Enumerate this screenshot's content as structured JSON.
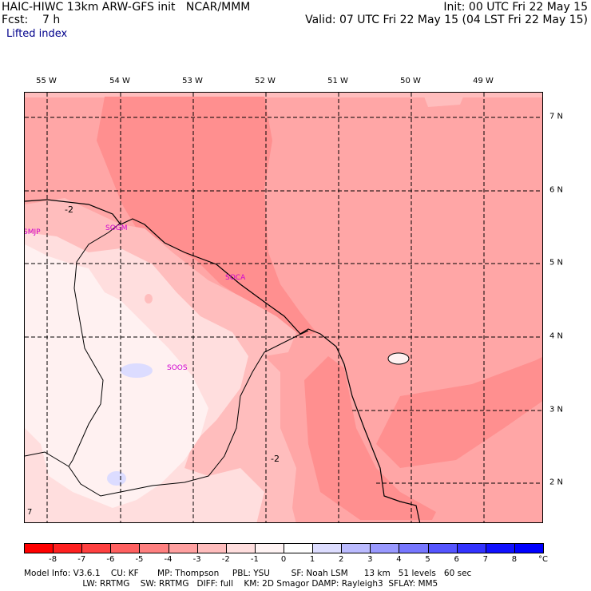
{
  "header": {
    "line1_left": "HAIC-HIWC 13km ARW-GFS init   NCAR/MMM",
    "line1_right": "Init: 00 UTC Fri 22 May 15",
    "line2_left": "Fcst:    7 h",
    "line2_right": "Valid: 07 UTC Fri 22 May 15 (04 LST Fri 22 May 15)",
    "field": "Lifted index"
  },
  "lon_labels": [
    "55 W",
    "54 W",
    "53 W",
    "52 W",
    "51 W",
    "50 W",
    "49 W"
  ],
  "lat_labels": [
    "7 N",
    "6 N",
    "5 N",
    "4 N",
    "3 N",
    "2 N"
  ],
  "stations": [
    "SMJP",
    "SOCA",
    "SOOS",
    "SOGM"
  ],
  "contour_labels": [
    "-2",
    "-2",
    "7"
  ],
  "colorbar": {
    "ticks": [
      "-8",
      "-7",
      "-6",
      "-5",
      "-4",
      "-3",
      "-2",
      "-1",
      "0",
      "1",
      "2",
      "3",
      "4",
      "5",
      "6",
      "7",
      "8"
    ],
    "unit": "°C",
    "colors": [
      "#ff0000",
      "#ff2020",
      "#ff4040",
      "#ff6060",
      "#ff8080",
      "#ffa0a0",
      "#ffbdbd",
      "#ffdede",
      "#fff4f4",
      "#ffffff",
      "#ddddff",
      "#bbbbff",
      "#9999ff",
      "#7777ff",
      "#5555ff",
      "#3333ff",
      "#1111ff",
      "#0000ff"
    ]
  },
  "footer": {
    "line1": "Model Info: V3.6.1    CU: KF       MP: Thompson     PBL: YSU        SF: Noah LSM      13 km   51 levels   60 sec",
    "line2": "                      LW: RRTMG    SW: RRTMG   DIFF: full    KM: 2D Smagor DAMP: Rayleigh3  SFLAY: MM5"
  },
  "map_colors": {
    "lvl_m4": "#ff8f8f",
    "lvl_m3": "#ffa6a6",
    "lvl_m2": "#ffbdbd",
    "lvl_m1": "#ffdede",
    "lvl_0": "#fff1f1",
    "lvl_1": "#dcdcff"
  }
}
